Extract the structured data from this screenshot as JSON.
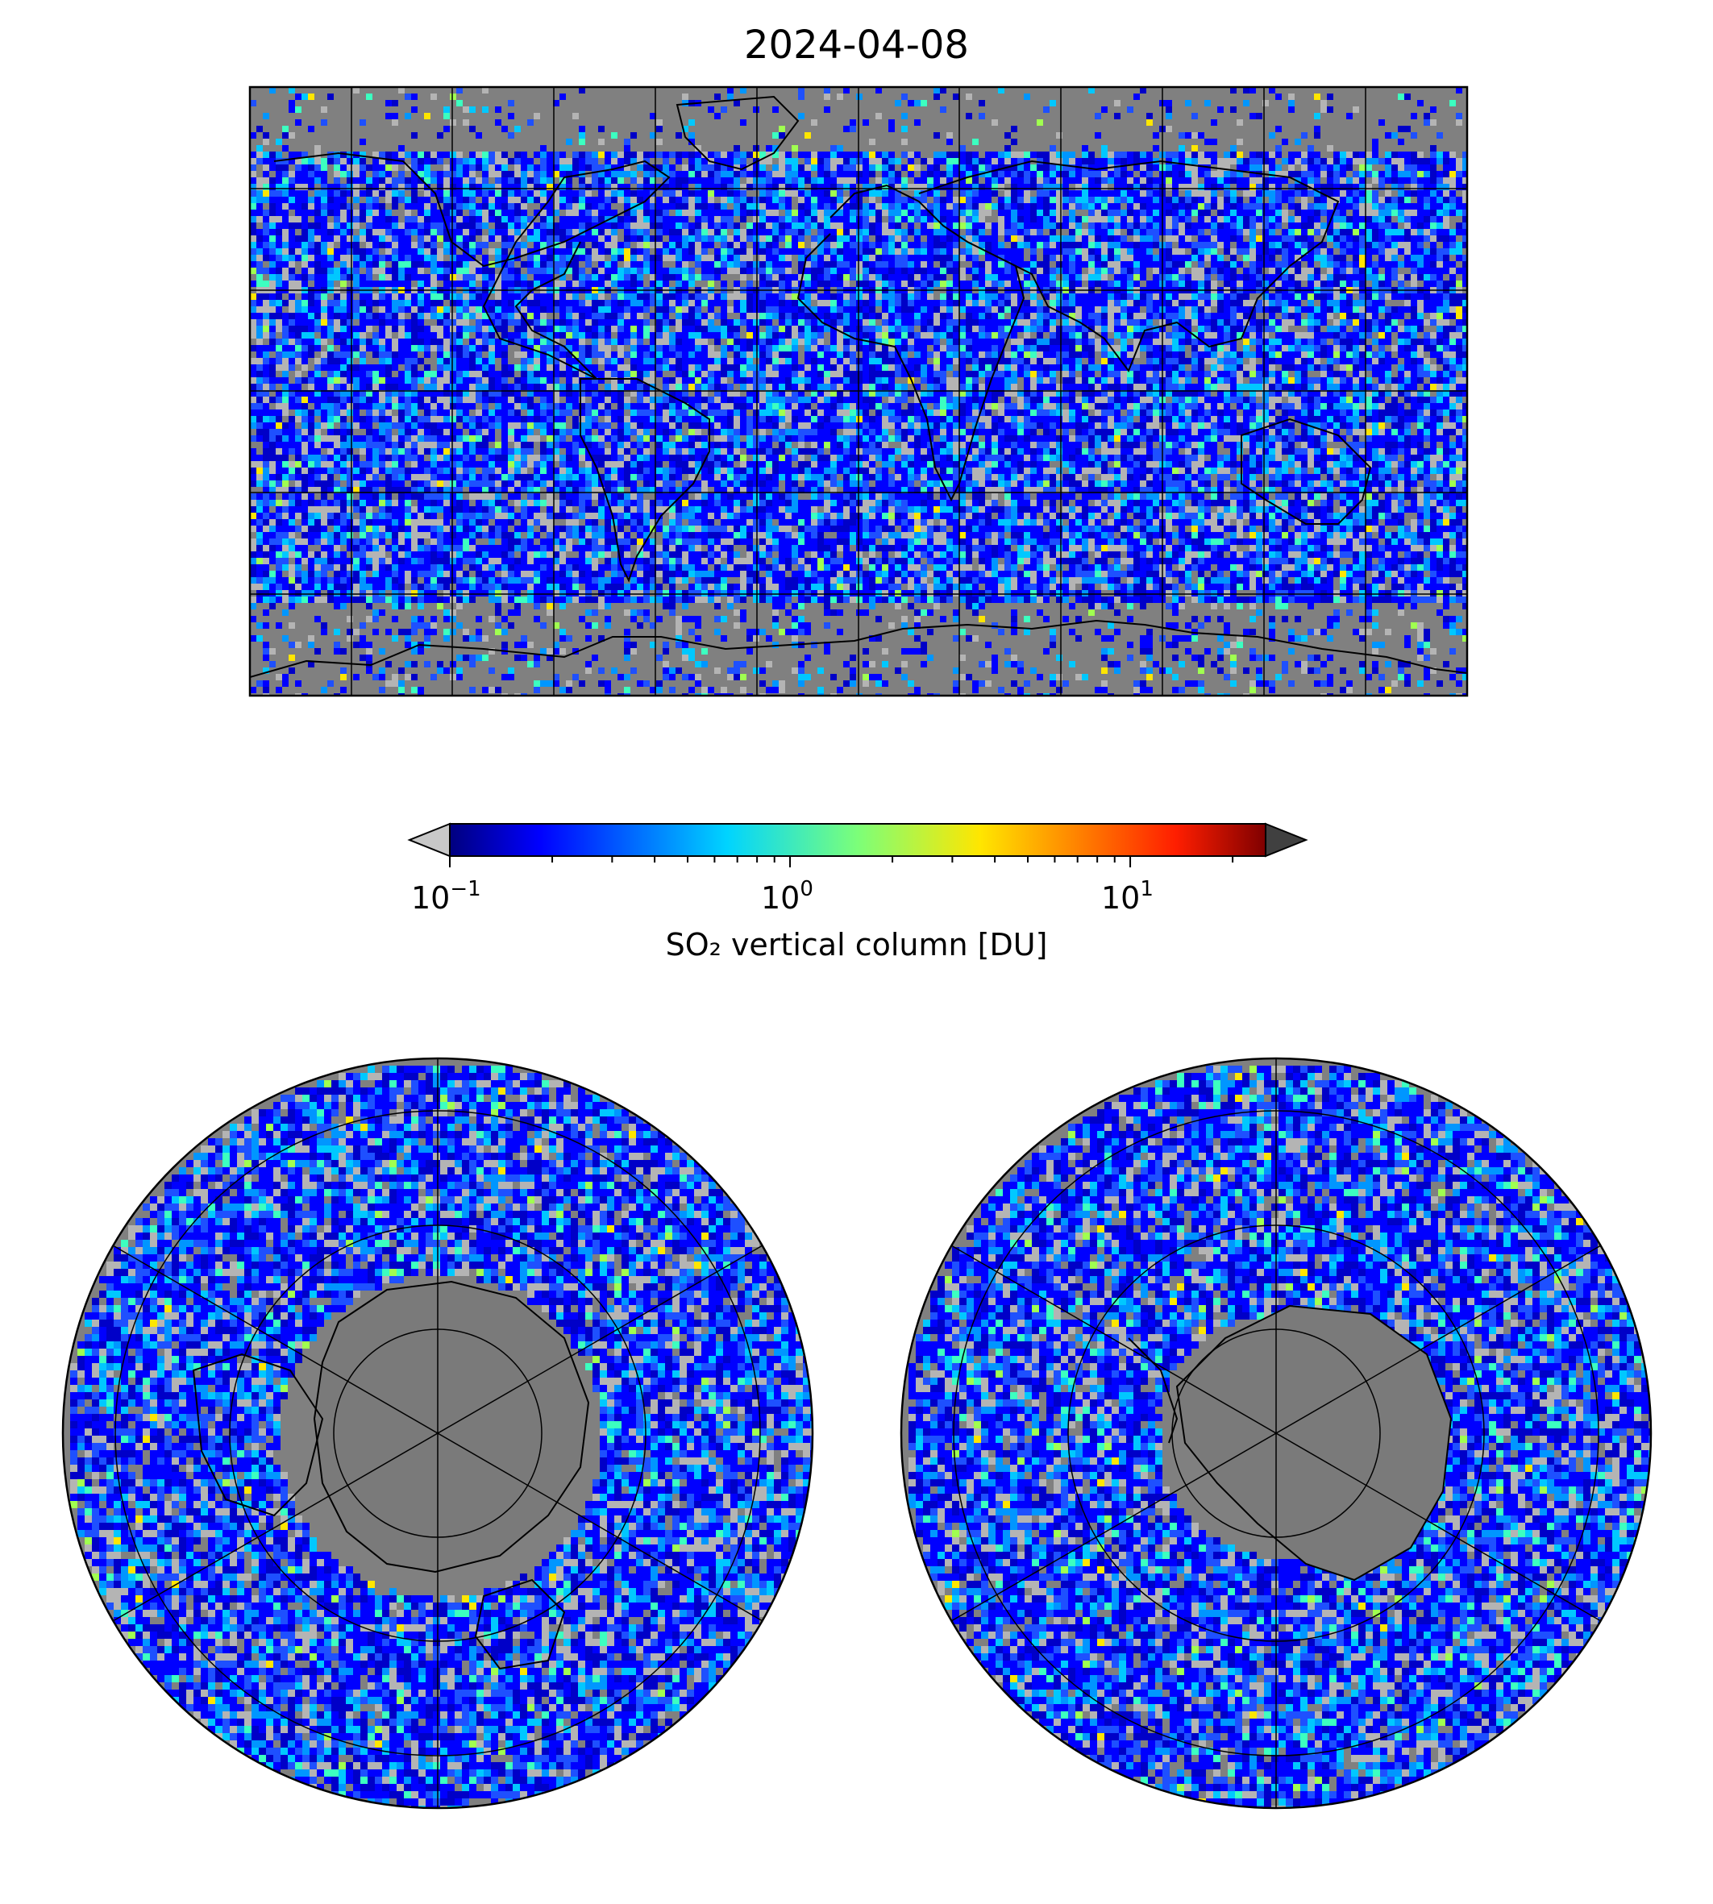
{
  "title": "2024-04-08",
  "colorbar": {
    "label": "SO₂ vertical column [DU]",
    "ticks": [
      {
        "base": "10",
        "exp": "−1",
        "value": 0.1
      },
      {
        "base": "10",
        "exp": "0",
        "value": 1
      },
      {
        "base": "10",
        "exp": "1",
        "value": 10
      }
    ],
    "scale": "log",
    "range": [
      0.1,
      25
    ],
    "extend": "both",
    "colormap": "jet",
    "under_color": "#c8c8c8",
    "over_color": "#404040"
  },
  "maps": [
    {
      "name": "global",
      "projection": "equirectangular",
      "grid": true
    },
    {
      "name": "north-polar",
      "projection": "polar-stereographic-north",
      "grid": true
    },
    {
      "name": "south-polar",
      "projection": "polar-stereographic-south",
      "grid": true
    }
  ],
  "colors": {
    "ocean_gray": "#808080",
    "no_data_light": "#b4b4b4",
    "coast": "#000000"
  }
}
